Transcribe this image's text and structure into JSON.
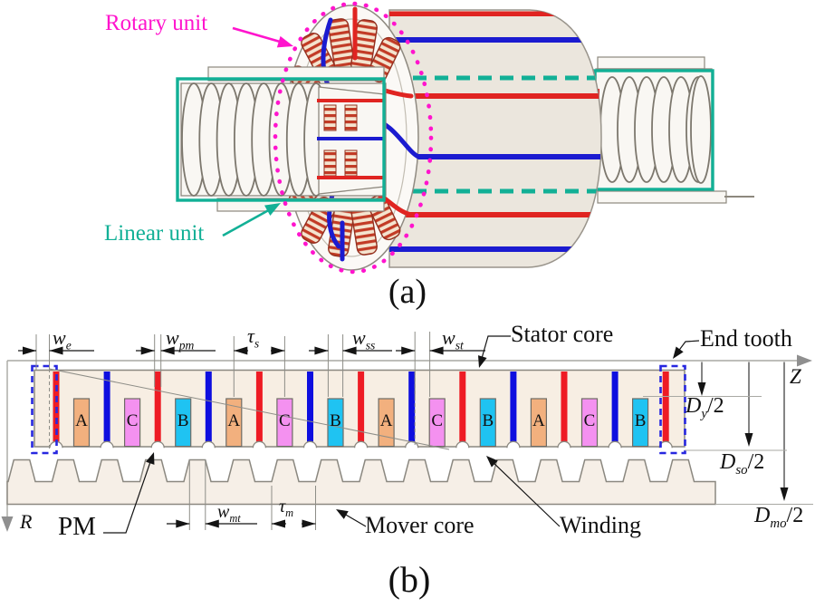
{
  "colors": {
    "magenta": "#ff14cd",
    "teal": "#12b096",
    "pm_red": "#ee1b24",
    "pm_blue": "#0e0edf",
    "phase_a": "#f2b07e",
    "phase_b": "#1fc3f2",
    "phase_c": "#f491f0",
    "stator_fill": "#f7eee3",
    "mover_fill": "#f6efe7",
    "outline_gray": "#8b8880",
    "axis_gray": "#a9a9a3",
    "ext_gray": "#8d8d87",
    "end_tooth_blue": "#2727e0",
    "dim_black": "#141414",
    "stripe_red": "#e02421",
    "stripe_blue": "#1b1bd0",
    "cyl_fill": "#ebe6dd",
    "cyl_edge": "#99948b",
    "coil_dark": "#c23b26",
    "coil_light": "#f4e4cf",
    "coil_edge": "#93301f",
    "metal_fill": "#f9f7f3",
    "metal_edge": "#8d887e",
    "thread_edge": "#7d786e",
    "face_fill": "#fbf9f6"
  },
  "panel_a": {
    "caption": "(a)",
    "rotary_unit_label": "Rotary unit",
    "linear_unit_label": "Linear unit"
  },
  "panel_b": {
    "caption": "(b)",
    "part_labels": {
      "stator_core": "Stator core",
      "end_tooth": "End tooth",
      "pm": "PM",
      "mover_core": "Mover core",
      "winding": "Winding"
    },
    "axis_labels": {
      "z": "Z",
      "r": "R"
    },
    "dims": {
      "we": {
        "base": "w",
        "sub": "e"
      },
      "wpm": {
        "base": "w",
        "sub": "pm"
      },
      "taus": {
        "base": "τ",
        "sub": "s"
      },
      "wss": {
        "base": "w",
        "sub": "ss"
      },
      "wst": {
        "base": "w",
        "sub": "st"
      },
      "wmt": {
        "base": "w",
        "sub": "mt"
      },
      "taum": {
        "base": "τ",
        "sub": "m"
      },
      "dy": {
        "base": "D",
        "sub": "y",
        "suffix": "/2"
      },
      "dso": {
        "base": "D",
        "sub": "so",
        "suffix": "/2"
      },
      "dmo": {
        "base": "D",
        "sub": "mo",
        "suffix": "/2"
      }
    },
    "phases": [
      "A",
      "C",
      "B",
      "A",
      "C",
      "B",
      "A",
      "C",
      "B",
      "A",
      "C",
      "B"
    ],
    "pm_sequence": [
      "red",
      "blue",
      "red",
      "blue",
      "red",
      "blue",
      "red",
      "blue",
      "red",
      "blue",
      "red",
      "blue",
      "red"
    ],
    "mover_teeth_count": 16
  }
}
